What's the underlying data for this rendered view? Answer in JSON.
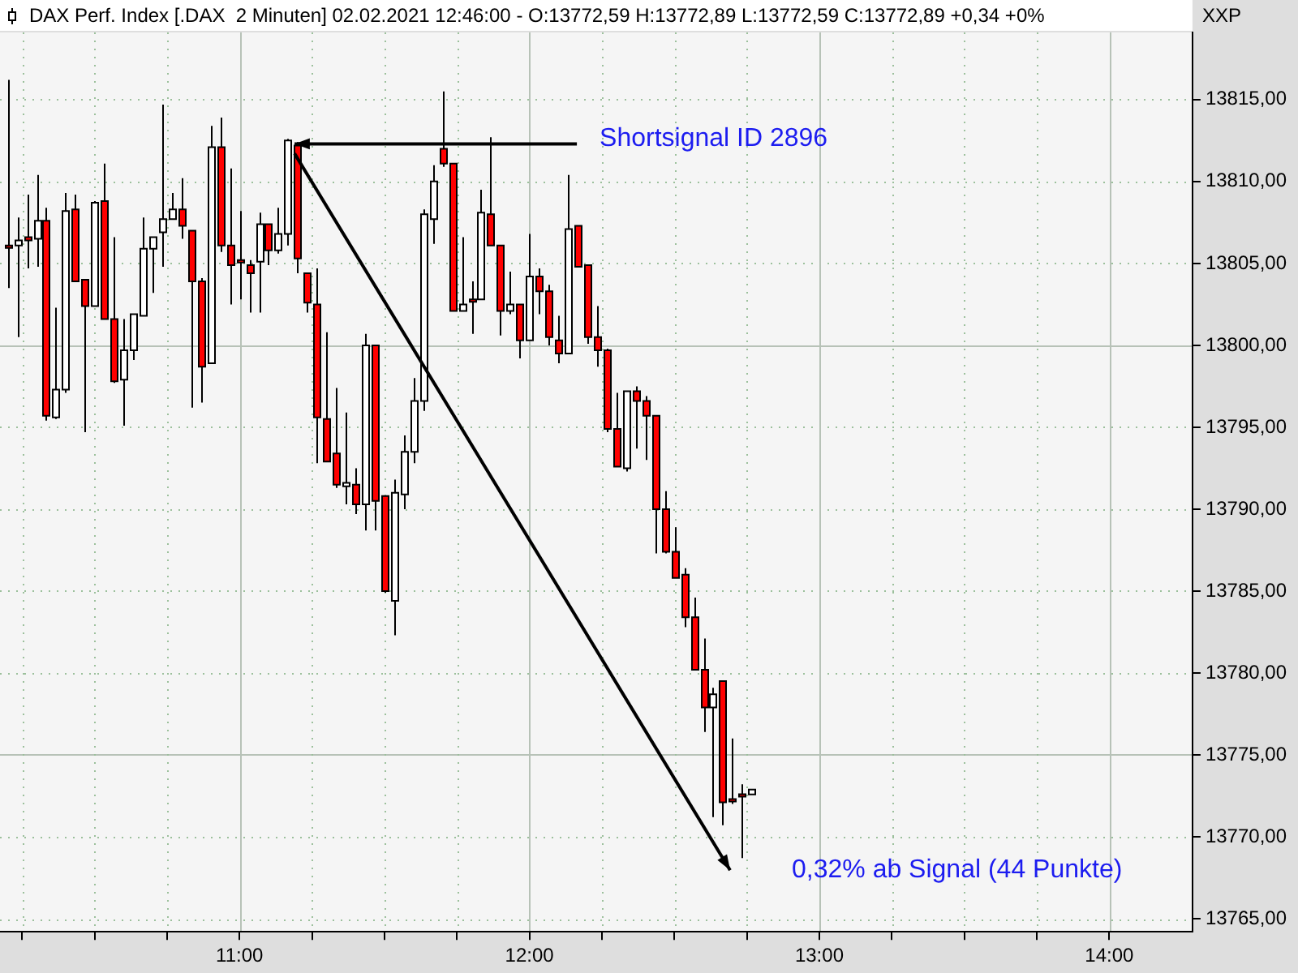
{
  "chart_data": {
    "type": "candlestick",
    "title": "DAX Perf. Index [.DAX  2 Minuten] 02.02.2021 12:46:00 - O:13772,59 H:13772,89 L:13772,59 C:13772,89 +0,34 +0%",
    "x": [
      10.2,
      10.2333,
      10.2667,
      10.3,
      10.3333,
      10.3667,
      10.4,
      10.4333,
      10.4667,
      10.5,
      10.5333,
      10.5667,
      10.6,
      10.6333,
      10.6667,
      10.7,
      10.7333,
      10.7667,
      10.8,
      10.8333,
      10.8667,
      10.9,
      10.9333,
      10.9667,
      11,
      11.0333,
      11.0667,
      11.1,
      11.1333,
      11.1667,
      11.2,
      11.2333,
      11.2667,
      11.3,
      11.3333,
      11.3667,
      11.4,
      11.4333,
      11.4667,
      11.5,
      11.5333,
      11.5667,
      11.6,
      11.6333,
      11.6667,
      11.7,
      11.7333,
      11.7667,
      11.8,
      11.8333,
      11.8667,
      11.9,
      11.9333,
      11.9667,
      12,
      12.0333,
      12.0667,
      12.1,
      12.1333,
      12.1667,
      12.2,
      12.2333,
      12.2667,
      12.3,
      12.3333,
      12.3667,
      12.4,
      12.4333,
      12.4667,
      12.5,
      12.5333,
      12.5667,
      12.6,
      12.6333,
      12.6667,
      12.7,
      12.7333,
      12.7667
    ],
    "ohlc": [
      [
        13806.1,
        13816.2,
        13803.5,
        13806.0
      ],
      [
        13806.1,
        13807.8,
        13800.5,
        13806.4
      ],
      [
        13806.6,
        13809.2,
        13804.7,
        13806.4
      ],
      [
        13806.5,
        13810.4,
        13804.8,
        13807.6
      ],
      [
        13807.6,
        13808.4,
        13795.4,
        13795.7
      ],
      [
        13795.6,
        13802.3,
        13795.5,
        13797.3
      ],
      [
        13797.3,
        13809.3,
        13797.1,
        13808.2
      ],
      [
        13808.3,
        13809.2,
        13803.9,
        13803.9
      ],
      [
        13804.0,
        13804.0,
        13794.7,
        13802.4
      ],
      [
        13802.4,
        13808.8,
        13802.4,
        13808.7
      ],
      [
        13808.8,
        13811.1,
        13801.6,
        13801.6
      ],
      [
        13801.6,
        13806.6,
        13797.7,
        13797.8
      ],
      [
        13797.9,
        13801.6,
        13795.1,
        13799.7
      ],
      [
        13799.7,
        13801.9,
        13799.1,
        13801.9
      ],
      [
        13801.8,
        13807.8,
        13801.8,
        13805.9
      ],
      [
        13805.9,
        13806.6,
        13803.2,
        13806.6
      ],
      [
        13806.9,
        13814.7,
        13804.8,
        13807.7
      ],
      [
        13807.7,
        13809.3,
        13807.7,
        13808.3
      ],
      [
        13808.3,
        13810.2,
        13806.5,
        13807.3
      ],
      [
        13807.0,
        13807.0,
        13796.2,
        13803.9
      ],
      [
        13803.9,
        13804.1,
        13796.5,
        13798.7
      ],
      [
        13798.9,
        13813.4,
        13798.9,
        13812.1
      ],
      [
        13812.1,
        13813.9,
        13805.7,
        13806.1
      ],
      [
        13806.1,
        13810.8,
        13802.5,
        13804.9
      ],
      [
        13805.2,
        13808.2,
        13802.8,
        13805.1
      ],
      [
        13804.9,
        13805.2,
        13802.0,
        13804.4
      ],
      [
        13805.1,
        13808.1,
        13802.0,
        13807.4
      ],
      [
        13807.4,
        13807.4,
        13804.9,
        13805.8
      ],
      [
        13805.8,
        13808.4,
        13805.6,
        13806.8
      ],
      [
        13806.8,
        13812.6,
        13806.1,
        13812.5
      ],
      [
        13812.2,
        13812.4,
        13804.4,
        13805.3
      ],
      [
        13804.4,
        13804.4,
        13802.0,
        13802.6
      ],
      [
        13802.5,
        13804.7,
        13792.8,
        13795.6
      ],
      [
        13795.5,
        13800.8,
        13792.9,
        13792.9
      ],
      [
        13793.4,
        13797.4,
        13791.3,
        13791.5
      ],
      [
        13791.4,
        13795.9,
        13790.3,
        13791.6
      ],
      [
        13791.5,
        13792.5,
        13789.7,
        13790.3
      ],
      [
        13790.3,
        13800.7,
        13788.7,
        13800.0
      ],
      [
        13800.0,
        13800.0,
        13788.7,
        13790.5
      ],
      [
        13790.8,
        13790.8,
        13784.9,
        13785.0
      ],
      [
        13784.4,
        13791.8,
        13782.3,
        13791.0
      ],
      [
        13790.9,
        13794.5,
        13790.0,
        13793.5
      ],
      [
        13793.5,
        13798.0,
        13792.8,
        13796.6
      ],
      [
        13796.6,
        13808.3,
        13796.0,
        13808.0
      ],
      [
        13807.7,
        13811.0,
        13806.2,
        13810.0
      ],
      [
        13812.0,
        13815.5,
        13810.9,
        13811.1
      ],
      [
        13811.1,
        13811.1,
        13802.1,
        13802.1
      ],
      [
        13802.1,
        13806.6,
        13802.1,
        13802.5
      ],
      [
        13802.8,
        13803.9,
        13800.7,
        13802.7
      ],
      [
        13802.8,
        13809.5,
        13802.8,
        13808.1
      ],
      [
        13808.0,
        13812.7,
        13806.1,
        13806.1
      ],
      [
        13806.1,
        13806.1,
        13800.6,
        13802.1
      ],
      [
        13802.1,
        13804.5,
        13801.9,
        13802.5
      ],
      [
        13802.5,
        13802.5,
        13799.2,
        13800.3
      ],
      [
        13800.3,
        13806.8,
        13800.3,
        13804.2
      ],
      [
        13804.2,
        13804.7,
        13801.9,
        13803.3
      ],
      [
        13803.3,
        13803.7,
        13800.0,
        13800.5
      ],
      [
        13800.3,
        13801.8,
        13798.9,
        13799.5
      ],
      [
        13799.5,
        13810.4,
        13799.5,
        13807.1
      ],
      [
        13807.3,
        13807.3,
        13804.8,
        13804.8
      ],
      [
        13804.9,
        13804.9,
        13800.1,
        13800.5
      ],
      [
        13800.5,
        13802.4,
        13798.7,
        13799.7
      ],
      [
        13799.7,
        13799.8,
        13794.7,
        13794.9
      ],
      [
        13794.9,
        13797.1,
        13792.6,
        13792.6
      ],
      [
        13792.5,
        13797.2,
        13792.3,
        13797.2
      ],
      [
        13797.2,
        13797.5,
        13793.7,
        13796.6
      ],
      [
        13796.6,
        13796.9,
        13793.0,
        13795.7
      ],
      [
        13795.7,
        13795.7,
        13787.3,
        13790.0
      ],
      [
        13790.0,
        13791.1,
        13787.3,
        13787.4
      ],
      [
        13787.4,
        13788.9,
        13785.8,
        13785.8
      ],
      [
        13786.0,
        13786.4,
        13782.8,
        13783.4
      ],
      [
        13783.4,
        13784.6,
        13780.2,
        13780.2
      ],
      [
        13780.2,
        13782.1,
        13776.4,
        13777.9
      ],
      [
        13777.9,
        13779.1,
        13771.2,
        13778.7
      ],
      [
        13779.5,
        13779.5,
        13770.7,
        13772.1
      ],
      [
        13772.3,
        13776.0,
        13772.0,
        13772.2
      ],
      [
        13772.6,
        13773.2,
        13768.7,
        13772.5
      ],
      [
        13772.59,
        13772.89,
        13772.59,
        13772.89
      ]
    ],
    "xlim": [
      10.174,
      14.287
    ],
    "xticks": [
      {
        "value": 10.25,
        "label": null
      },
      {
        "value": 10.5,
        "label": null
      },
      {
        "value": 10.75,
        "label": null
      },
      {
        "value": 11,
        "label": "11:00"
      },
      {
        "value": 11.25,
        "label": null
      },
      {
        "value": 11.5,
        "label": null
      },
      {
        "value": 11.75,
        "label": null
      },
      {
        "value": 12,
        "label": "12:00"
      },
      {
        "value": 12.25,
        "label": null
      },
      {
        "value": 12.5,
        "label": null
      },
      {
        "value": 12.75,
        "label": null
      },
      {
        "value": 13,
        "label": "13:00"
      },
      {
        "value": 13.25,
        "label": null
      },
      {
        "value": 13.5,
        "label": null
      },
      {
        "value": 13.75,
        "label": null
      },
      {
        "value": 14,
        "label": "14:00"
      }
    ],
    "ylim": [
      13764.2,
      13819.1
    ],
    "yticks": [
      {
        "value": 13765,
        "label": "13765,00"
      },
      {
        "value": 13770,
        "label": "13770,00"
      },
      {
        "value": 13775,
        "label": "13775,00"
      },
      {
        "value": 13780,
        "label": "13780,00"
      },
      {
        "value": 13785,
        "label": "13785,00"
      },
      {
        "value": 13790,
        "label": "13790,00"
      },
      {
        "value": 13795,
        "label": "13795,00"
      },
      {
        "value": 13800,
        "label": "13800,00"
      },
      {
        "value": 13805,
        "label": "13805,00"
      },
      {
        "value": 13810,
        "label": "13810,00"
      },
      {
        "value": 13815,
        "label": "13815,00"
      }
    ],
    "grid": true,
    "annotations": [
      {
        "text": "Shortsignal ID 2896",
        "x": 11.19,
        "y": 13812.3
      },
      "0,32% ab Signal (44 Punkte)",
      "XXP"
    ]
  }
}
